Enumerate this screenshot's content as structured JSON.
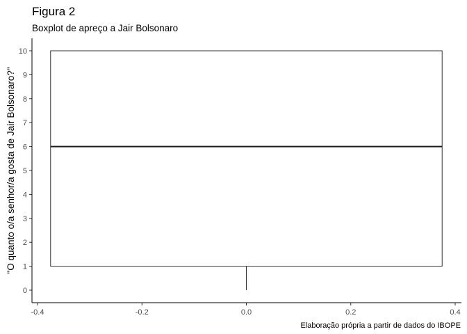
{
  "chart_data": {
    "type": "boxplot",
    "title": "Figura 2",
    "subtitle": "Boxplot de apreço a Jair Bolsonaro",
    "xlabel": "",
    "ylabel": "\"O quanto o/a senhor/a gosta de Jair Bolsonaro?\"",
    "caption": "Elaboração própria a partir de dados do IBOPE",
    "xlim": [
      -0.4,
      0.4
    ],
    "ylim": [
      0,
      10
    ],
    "x_ticks": [
      {
        "value": -0.4,
        "label": "-0.4"
      },
      {
        "value": -0.2,
        "label": "-0.2"
      },
      {
        "value": 0.0,
        "label": "0.0"
      },
      {
        "value": 0.2,
        "label": "0.2"
      },
      {
        "value": 0.4,
        "label": "0.4"
      }
    ],
    "y_ticks": [
      {
        "value": 0,
        "label": "0"
      },
      {
        "value": 1,
        "label": "1"
      },
      {
        "value": 2,
        "label": "2"
      },
      {
        "value": 3,
        "label": "3"
      },
      {
        "value": 4,
        "label": "4"
      },
      {
        "value": 5,
        "label": "5"
      },
      {
        "value": 6,
        "label": "6"
      },
      {
        "value": 7,
        "label": "7"
      },
      {
        "value": 8,
        "label": "8"
      },
      {
        "value": 9,
        "label": "9"
      },
      {
        "value": 10,
        "label": "10"
      }
    ],
    "box": {
      "x_center": 0.0,
      "x_min": -0.375,
      "x_max": 0.375,
      "whisker_low": 0,
      "q1": 1,
      "median": 6,
      "q3": 10,
      "whisker_high": 10
    },
    "grid": false,
    "colors": {
      "box_fill": "#ffffff",
      "box_stroke": "#333333",
      "median": "#1a1a1a",
      "axis": "#000000",
      "tick_text": "#4d4d4d"
    }
  }
}
